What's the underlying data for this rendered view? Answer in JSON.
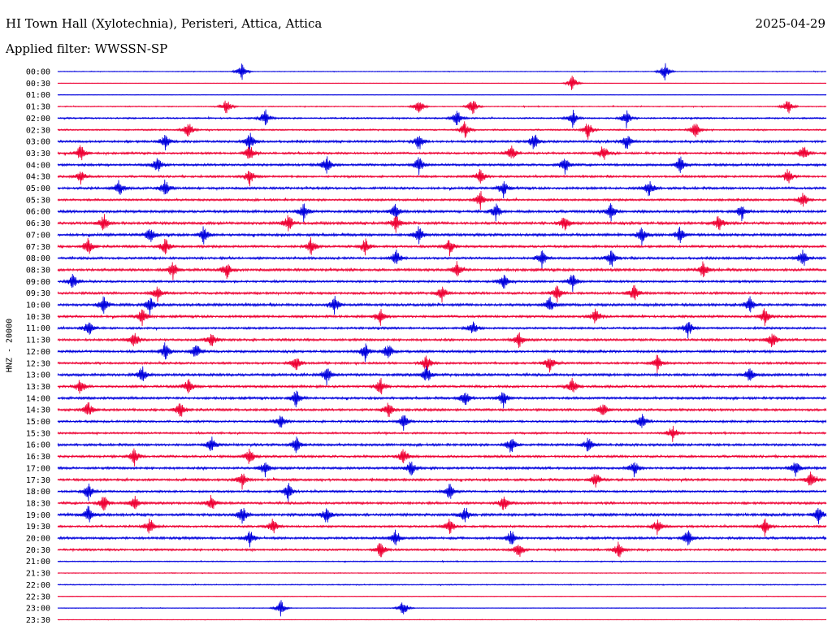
{
  "header": {
    "station": "HI Town Hall (Xylotechnia), Peristeri, Attica, Attica",
    "date": "2025-04-29",
    "filter": "Applied filter: WWSSN-SP"
  },
  "chart_data": {
    "type": "line",
    "title": "HI Town Hall (Xylotechnia), Peristeri, Attica, Attica",
    "ylabel": "HNZ - 20000",
    "colors": [
      "#0000dd",
      "#ee0033"
    ],
    "rows": [
      {
        "time": "00:00",
        "activity": 0.15,
        "events": [
          0.24,
          0.79
        ]
      },
      {
        "time": "00:30",
        "activity": 0.05,
        "events": [
          0.67
        ]
      },
      {
        "time": "01:00",
        "activity": 0.08,
        "events": []
      },
      {
        "time": "01:30",
        "activity": 0.2,
        "events": [
          0.22,
          0.47,
          0.54,
          0.95
        ]
      },
      {
        "time": "02:00",
        "activity": 0.3,
        "events": [
          0.27,
          0.52,
          0.67,
          0.74
        ]
      },
      {
        "time": "02:30",
        "activity": 0.3,
        "events": [
          0.17,
          0.53,
          0.69,
          0.83
        ]
      },
      {
        "time": "03:00",
        "activity": 0.45,
        "events": [
          0.14,
          0.25,
          0.47,
          0.62,
          0.74
        ]
      },
      {
        "time": "03:30",
        "activity": 0.4,
        "events": [
          0.03,
          0.25,
          0.59,
          0.71,
          0.97
        ]
      },
      {
        "time": "04:00",
        "activity": 0.45,
        "events": [
          0.13,
          0.35,
          0.47,
          0.66,
          0.81
        ]
      },
      {
        "time": "04:30",
        "activity": 0.4,
        "events": [
          0.03,
          0.25,
          0.55,
          0.95
        ]
      },
      {
        "time": "05:00",
        "activity": 0.45,
        "events": [
          0.08,
          0.14,
          0.58,
          0.77
        ]
      },
      {
        "time": "05:30",
        "activity": 0.4,
        "events": [
          0.55,
          0.97
        ]
      },
      {
        "time": "06:00",
        "activity": 0.5,
        "events": [
          0.32,
          0.44,
          0.57,
          0.72,
          0.89
        ]
      },
      {
        "time": "06:30",
        "activity": 0.5,
        "events": [
          0.06,
          0.3,
          0.44,
          0.66,
          0.86
        ]
      },
      {
        "time": "07:00",
        "activity": 0.5,
        "events": [
          0.12,
          0.19,
          0.47,
          0.76,
          0.81
        ]
      },
      {
        "time": "07:30",
        "activity": 0.45,
        "events": [
          0.04,
          0.14,
          0.33,
          0.4,
          0.51
        ]
      },
      {
        "time": "08:00",
        "activity": 0.45,
        "events": [
          0.44,
          0.63,
          0.72,
          0.97
        ]
      },
      {
        "time": "08:30",
        "activity": 0.5,
        "events": [
          0.15,
          0.22,
          0.52,
          0.84
        ]
      },
      {
        "time": "09:00",
        "activity": 0.4,
        "events": [
          0.02,
          0.58,
          0.67
        ]
      },
      {
        "time": "09:30",
        "activity": 0.45,
        "events": [
          0.13,
          0.5,
          0.65,
          0.75
        ]
      },
      {
        "time": "10:00",
        "activity": 0.5,
        "events": [
          0.06,
          0.12,
          0.36,
          0.64,
          0.9
        ]
      },
      {
        "time": "10:30",
        "activity": 0.45,
        "events": [
          0.11,
          0.42,
          0.7,
          0.92
        ]
      },
      {
        "time": "11:00",
        "activity": 0.4,
        "events": [
          0.04,
          0.54,
          0.82
        ]
      },
      {
        "time": "11:30",
        "activity": 0.45,
        "events": [
          0.1,
          0.2,
          0.6,
          0.93
        ]
      },
      {
        "time": "12:00",
        "activity": 0.45,
        "events": [
          0.14,
          0.18,
          0.4,
          0.43
        ]
      },
      {
        "time": "12:30",
        "activity": 0.4,
        "events": [
          0.31,
          0.48,
          0.64,
          0.78
        ]
      },
      {
        "time": "13:00",
        "activity": 0.5,
        "events": [
          0.11,
          0.35,
          0.48,
          0.9
        ]
      },
      {
        "time": "13:30",
        "activity": 0.45,
        "events": [
          0.03,
          0.17,
          0.42,
          0.67
        ]
      },
      {
        "time": "14:00",
        "activity": 0.45,
        "events": [
          0.31,
          0.53,
          0.58
        ]
      },
      {
        "time": "14:30",
        "activity": 0.45,
        "events": [
          0.04,
          0.16,
          0.43,
          0.71
        ]
      },
      {
        "time": "15:00",
        "activity": 0.4,
        "events": [
          0.29,
          0.45,
          0.76
        ]
      },
      {
        "time": "15:30",
        "activity": 0.35,
        "events": [
          0.8
        ]
      },
      {
        "time": "16:00",
        "activity": 0.45,
        "events": [
          0.2,
          0.31,
          0.59,
          0.69
        ]
      },
      {
        "time": "16:30",
        "activity": 0.45,
        "events": [
          0.1,
          0.25,
          0.45
        ]
      },
      {
        "time": "17:00",
        "activity": 0.45,
        "events": [
          0.27,
          0.46,
          0.75,
          0.96
        ]
      },
      {
        "time": "17:30",
        "activity": 0.45,
        "events": [
          0.24,
          0.7,
          0.98
        ]
      },
      {
        "time": "18:00",
        "activity": 0.4,
        "events": [
          0.04,
          0.3,
          0.51
        ]
      },
      {
        "time": "18:30",
        "activity": 0.45,
        "events": [
          0.06,
          0.1,
          0.2,
          0.58
        ]
      },
      {
        "time": "19:00",
        "activity": 0.5,
        "events": [
          0.04,
          0.24,
          0.35,
          0.53,
          0.99
        ]
      },
      {
        "time": "19:30",
        "activity": 0.4,
        "events": [
          0.12,
          0.28,
          0.51,
          0.78,
          0.92
        ]
      },
      {
        "time": "20:00",
        "activity": 0.45,
        "events": [
          0.25,
          0.44,
          0.59,
          0.82
        ]
      },
      {
        "time": "20:30",
        "activity": 0.4,
        "events": [
          0.42,
          0.6,
          0.73
        ]
      },
      {
        "time": "21:00",
        "activity": 0.2,
        "events": []
      },
      {
        "time": "21:30",
        "activity": 0.15,
        "events": []
      },
      {
        "time": "22:00",
        "activity": 0.2,
        "events": []
      },
      {
        "time": "22:30",
        "activity": 0.12,
        "events": []
      },
      {
        "time": "23:00",
        "activity": 0.12,
        "events": [
          0.29,
          0.45
        ]
      },
      {
        "time": "23:30",
        "activity": 0.12,
        "events": []
      }
    ]
  }
}
